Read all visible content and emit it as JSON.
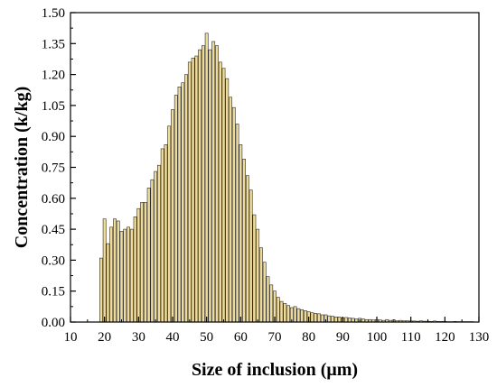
{
  "chart_data": {
    "type": "bar",
    "title": "",
    "xlabel": "Size of inclusion (μm)",
    "ylabel": "Concentration (k/kg)",
    "xlim": [
      10,
      130
    ],
    "ylim": [
      0,
      1.5
    ],
    "xticks": [
      "10",
      "20",
      "30",
      "40",
      "50",
      "60",
      "70",
      "80",
      "90",
      "100",
      "110",
      "120",
      "130"
    ],
    "yticks": [
      "0.00",
      "0.15",
      "0.30",
      "0.45",
      "0.60",
      "0.75",
      "0.90",
      "1.05",
      "1.20",
      "1.35",
      "1.50"
    ],
    "bin_width": 0.85,
    "grid": false,
    "legend": "none",
    "colors": {
      "bar_fill": "#f0dc9a",
      "bar_edge": "#2a2a2a",
      "axis": "#000000"
    },
    "x": [
      19,
      20,
      21,
      22,
      23,
      24,
      25,
      26,
      27,
      28,
      29,
      30,
      31,
      32,
      33,
      34,
      35,
      36,
      37,
      38,
      39,
      40,
      41,
      42,
      43,
      44,
      45,
      46,
      47,
      48,
      49,
      50,
      51,
      52,
      53,
      54,
      55,
      56,
      57,
      58,
      59,
      60,
      61,
      62,
      63,
      64,
      65,
      66,
      67,
      68,
      69,
      70,
      71,
      72,
      73,
      74,
      75,
      76,
      77,
      78,
      79,
      80,
      81,
      82,
      83,
      84,
      85,
      86,
      87,
      88,
      89,
      90,
      91,
      92,
      93,
      94,
      95,
      96,
      97,
      98,
      99,
      100,
      101,
      102,
      103,
      104,
      105,
      106,
      107,
      108,
      109,
      110,
      111,
      112,
      113,
      114,
      115,
      116,
      117,
      118,
      119,
      120,
      121,
      122,
      123,
      124,
      125,
      126,
      127,
      128
    ],
    "values": [
      0.31,
      0.5,
      0.38,
      0.46,
      0.5,
      0.49,
      0.44,
      0.45,
      0.46,
      0.45,
      0.51,
      0.55,
      0.58,
      0.58,
      0.65,
      0.69,
      0.73,
      0.76,
      0.84,
      0.86,
      0.95,
      1.03,
      1.1,
      1.14,
      1.16,
      1.2,
      1.26,
      1.28,
      1.29,
      1.32,
      1.34,
      1.4,
      1.32,
      1.36,
      1.34,
      1.26,
      1.23,
      1.18,
      1.09,
      1.04,
      0.96,
      0.86,
      0.79,
      0.71,
      0.64,
      0.52,
      0.45,
      0.36,
      0.29,
      0.22,
      0.18,
      0.15,
      0.12,
      0.1,
      0.09,
      0.08,
      0.07,
      0.075,
      0.065,
      0.06,
      0.055,
      0.05,
      0.045,
      0.042,
      0.04,
      0.035,
      0.035,
      0.03,
      0.028,
      0.025,
      0.025,
      0.02,
      0.022,
      0.02,
      0.018,
      0.015,
      0.018,
      0.015,
      0.012,
      0.012,
      0.01,
      0.012,
      0.01,
      0.008,
      0.012,
      0.008,
      0.01,
      0.006,
      0.008,
      0.006,
      0.006,
      0.005,
      0.005,
      0.004,
      0.006,
      0.004,
      0.004,
      0.003,
      0.005,
      0.003,
      0.003,
      0.003,
      0.002,
      0.002,
      0.003,
      0.002,
      0.002,
      0.002,
      0.002,
      0.002
    ]
  }
}
